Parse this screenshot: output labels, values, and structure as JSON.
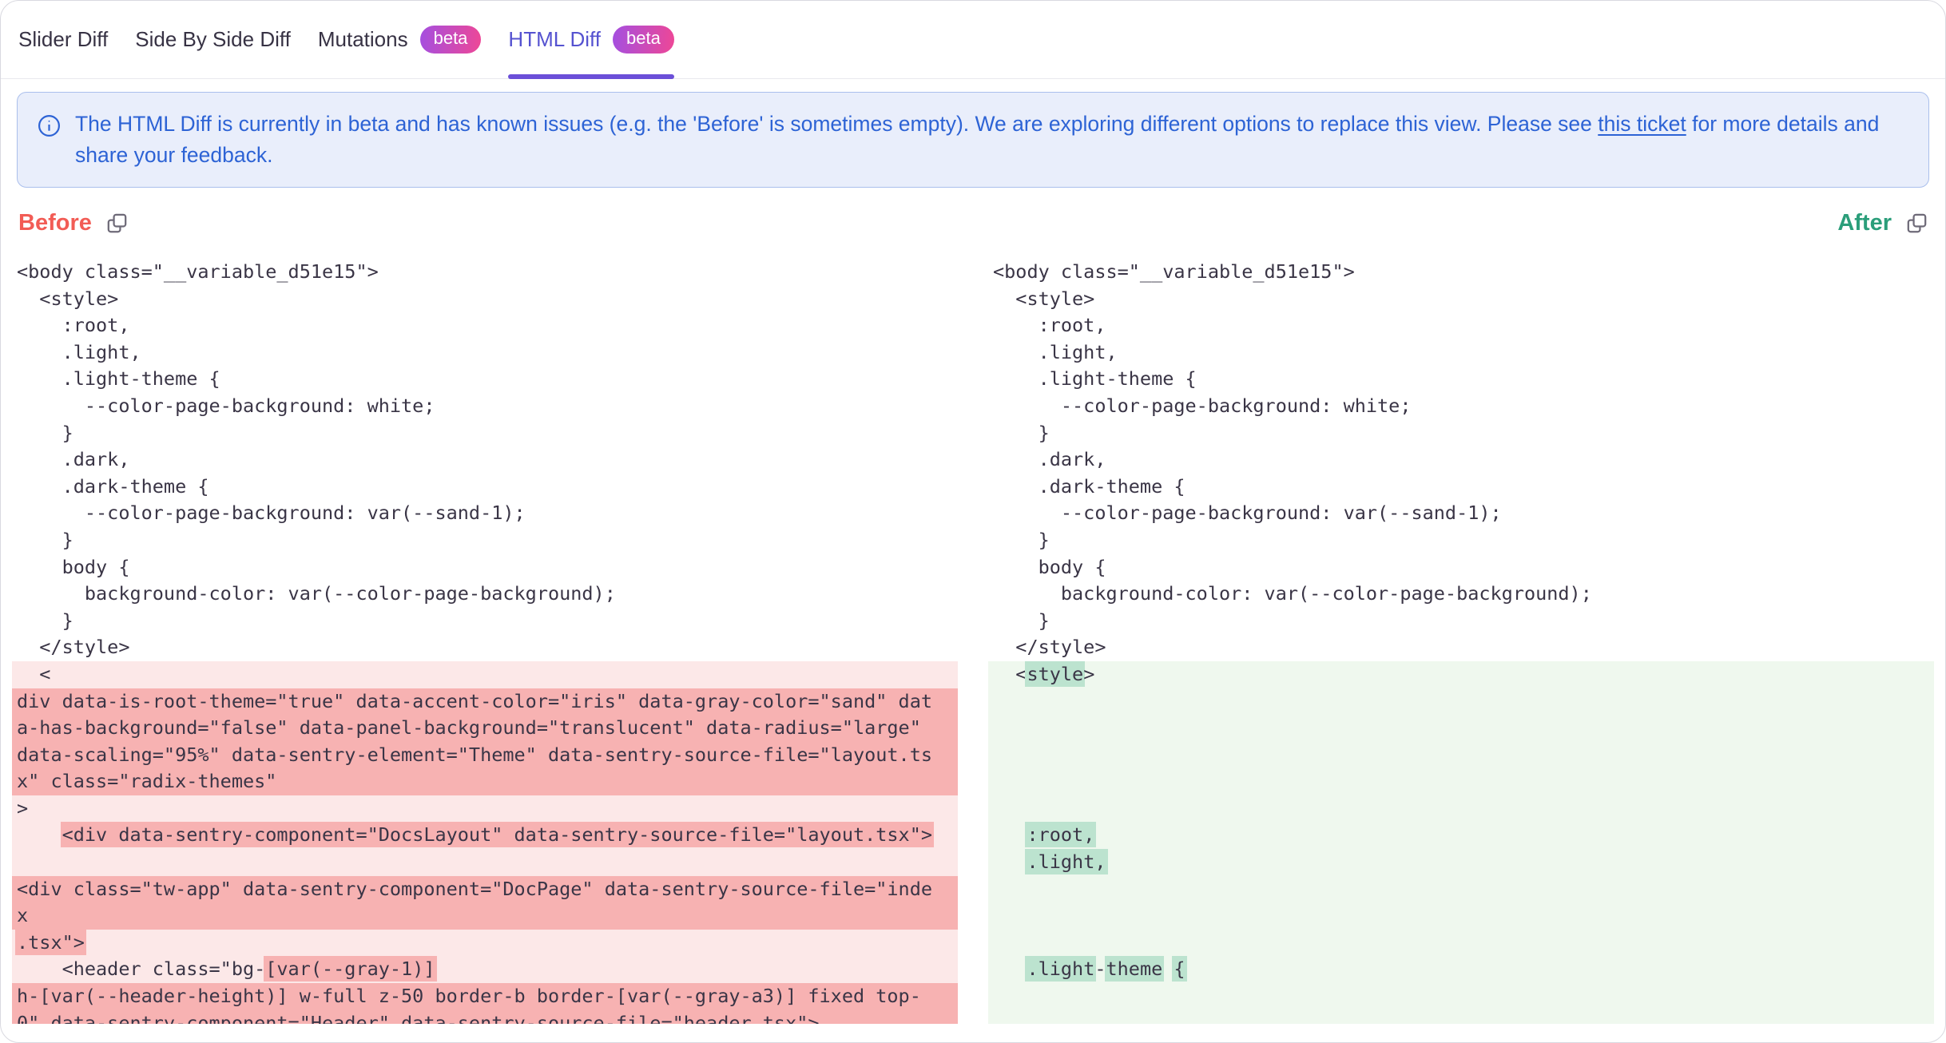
{
  "tabs": [
    {
      "label": "Slider Diff",
      "slug": "slider-diff",
      "beta": false,
      "active": false
    },
    {
      "label": "Side By Side Diff",
      "slug": "side-by-side-diff",
      "beta": false,
      "active": false
    },
    {
      "label": "Mutations",
      "slug": "mutations",
      "beta": true,
      "active": false
    },
    {
      "label": "HTML Diff",
      "slug": "html-diff",
      "beta": true,
      "active": true
    }
  ],
  "beta_badge_label": "beta",
  "banner": {
    "text_before_link": "The HTML Diff is currently in beta and has known issues (e.g. the 'Before' is sometimes empty). We are exploring different options to replace this view. Please see ",
    "link_text": "this ticket",
    "text_after_link": " for more details and share your feedback."
  },
  "colors": {
    "active_tab": "#5552d0",
    "tab_underline": "#6b4fd8",
    "badge_gradient_start": "#a44fe0",
    "badge_gradient_end": "#ee4796",
    "banner_bg": "#e9eefb",
    "banner_border": "#aabfec",
    "banner_text": "#2d63d5",
    "before_accent": "#f25c55",
    "after_accent": "#2b9e7a",
    "del_light": "#fce8e8",
    "del_dark": "#f7b2b2",
    "ins_light": "#eff8ee",
    "ins_dark": "#bce3cf",
    "code_text": "#3a3546"
  },
  "panes": {
    "before": {
      "label": "Before",
      "lines": [
        {
          "text": "<body class=\"__variable_d51e15\">"
        },
        {
          "text": "  <style>"
        },
        {
          "text": "    :root,"
        },
        {
          "text": "    .light,"
        },
        {
          "text": "    .light-theme {"
        },
        {
          "text": "      --color-page-background: white;"
        },
        {
          "text": "    }"
        },
        {
          "text": "    .dark,"
        },
        {
          "text": "    .dark-theme {"
        },
        {
          "text": "      --color-page-background: var(--sand-1);"
        },
        {
          "text": "    }"
        },
        {
          "text": "    body {"
        },
        {
          "text": "      background-color: var(--color-page-background);"
        },
        {
          "text": "    }"
        },
        {
          "text": "  </style>"
        },
        {
          "bg": "light",
          "text": "  <"
        },
        {
          "bg": "dark",
          "text": "div data-is-root-theme=\"true\" data-accent-color=\"iris\" data-gray-color=\"sand\" dat"
        },
        {
          "bg": "dark",
          "text": "a-has-background=\"false\" data-panel-background=\"translucent\" data-radius=\"large\""
        },
        {
          "bg": "dark",
          "text": "data-scaling=\"95%\" data-sentry-element=\"Theme\" data-sentry-source-file=\"layout.ts"
        },
        {
          "bg": "dark",
          "text": "x\" class=\"radix-themes\""
        },
        {
          "bg": "light",
          "text": ">"
        },
        {
          "bg": "light",
          "segments": [
            {
              "text": "    "
            },
            {
              "text": "<div data-sentry-component=\"DocsLayout\" data-sentry-source-file=\"layout.tsx\">",
              "hl": true
            }
          ]
        },
        {
          "bg": "light",
          "text": ""
        },
        {
          "bg": "dark",
          "text": "<div class=\"tw-app\" data-sentry-component=\"DocPage\" data-sentry-source-file=\"inde"
        },
        {
          "bg": "dark",
          "text": "x"
        },
        {
          "bg": "light",
          "segments": [
            {
              "text": ".tsx\">",
              "hl": true
            }
          ]
        },
        {
          "bg": "light",
          "segments": [
            {
              "text": "    <header class=\"bg-"
            },
            {
              "text": "[var(--gray-1)]",
              "hl": true
            }
          ]
        },
        {
          "bg": "dark",
          "text": "h-[var(--header-height)] w-full z-50 border-b border-[var(--gray-a3)] fixed top-"
        },
        {
          "bg": "dark",
          "text": "0\" data-sentry-component=\"Header\" data-sentry-source-file=\"header.tsx\">"
        }
      ]
    },
    "after": {
      "label": "After",
      "lines": [
        {
          "text": "<body class=\"__variable_d51e15\">"
        },
        {
          "text": "  <style>"
        },
        {
          "text": "    :root,"
        },
        {
          "text": "    .light,"
        },
        {
          "text": "    .light-theme {"
        },
        {
          "text": "      --color-page-background: white;"
        },
        {
          "text": "    }"
        },
        {
          "text": "    .dark,"
        },
        {
          "text": "    .dark-theme {"
        },
        {
          "text": "      --color-page-background: var(--sand-1);"
        },
        {
          "text": "    }"
        },
        {
          "text": "    body {"
        },
        {
          "text": "      background-color: var(--color-page-background);"
        },
        {
          "text": "    }"
        },
        {
          "text": "  </style>"
        },
        {
          "bg": "light",
          "segments": [
            {
              "text": "  <"
            },
            {
              "text": "style",
              "hl": true
            },
            {
              "text": ">"
            }
          ]
        },
        {
          "bg": "light",
          "text": ""
        },
        {
          "bg": "light",
          "text": ""
        },
        {
          "bg": "light",
          "text": ""
        },
        {
          "bg": "light",
          "text": ""
        },
        {
          "bg": "light",
          "text": ""
        },
        {
          "bg": "light",
          "segments": [
            {
              "text": "   "
            },
            {
              "text": ":root,",
              "hl": true
            }
          ]
        },
        {
          "bg": "light",
          "segments": [
            {
              "text": "   "
            },
            {
              "text": ".light,",
              "hl": true
            }
          ]
        },
        {
          "bg": "light",
          "text": ""
        },
        {
          "bg": "light",
          "text": ""
        },
        {
          "bg": "light",
          "text": ""
        },
        {
          "bg": "light",
          "segments": [
            {
              "text": "   "
            },
            {
              "text": ".light",
              "hl": true
            },
            {
              "text": "-"
            },
            {
              "text": "theme",
              "hl": true
            },
            {
              "text": " "
            },
            {
              "text": "{",
              "hl": true
            }
          ]
        },
        {
          "bg": "light",
          "text": ""
        },
        {
          "bg": "light",
          "text": ""
        }
      ]
    }
  }
}
